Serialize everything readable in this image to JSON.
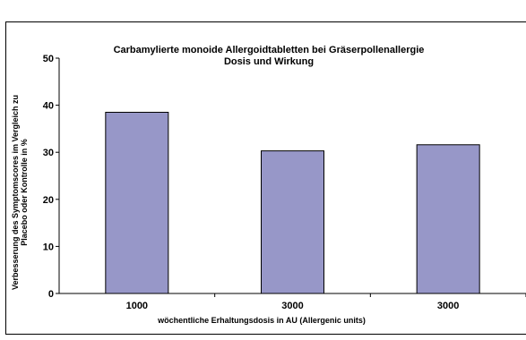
{
  "chart_data": {
    "type": "bar",
    "title_lines": [
      "Carbamylierte monoide Allergoidtabletten bei Gräserpollenallergie",
      "Dosis und Wirkung"
    ],
    "categories": [
      "1000",
      "3000",
      "3000"
    ],
    "values": [
      38.5,
      30.3,
      31.6
    ],
    "xlabel": "wöchentliche Erhaltungsdosis in AU (Allergenic units)",
    "ylabel_lines": [
      "Verbesserung des Symptomscores im Vergleich zu",
      "Placebo oder Kontrolle in %"
    ],
    "ylim": [
      0,
      50
    ],
    "yticks": [
      "0",
      "10",
      "20",
      "30",
      "40",
      "50"
    ],
    "grid": false,
    "bar_color": "#9797c8",
    "bar_border_color": "#000000"
  }
}
